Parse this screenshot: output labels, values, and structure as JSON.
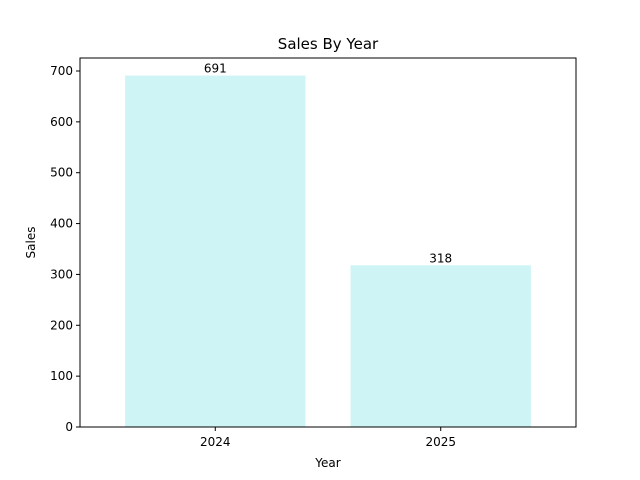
{
  "chart_data": {
    "type": "bar",
    "title": "Sales By Year",
    "xlabel": "Year",
    "ylabel": "Sales",
    "categories": [
      "2024",
      "2025"
    ],
    "values": [
      691,
      318
    ],
    "data_labels": [
      "691",
      "318"
    ],
    "yticks": [
      0,
      100,
      200,
      300,
      400,
      500,
      600,
      700
    ],
    "ylim": [
      0,
      725.55
    ],
    "grid": false,
    "legend": "none",
    "bar_color": "#cff4f5"
  }
}
